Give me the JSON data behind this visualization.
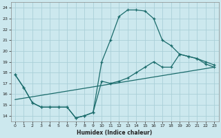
{
  "xlabel": "Humidex (Indice chaleur)",
  "background_color": "#cce8ee",
  "grid_color": "#aacfd8",
  "line_color": "#1a6b6b",
  "ylim": [
    13.5,
    24.5
  ],
  "xlim": [
    -0.5,
    23.5
  ],
  "yticks": [
    14,
    15,
    16,
    17,
    18,
    19,
    20,
    21,
    22,
    23,
    24
  ],
  "xticks": [
    0,
    1,
    2,
    3,
    4,
    5,
    6,
    7,
    8,
    9,
    10,
    11,
    12,
    13,
    14,
    15,
    16,
    17,
    18,
    19,
    20,
    21,
    22,
    23
  ],
  "line1_x": [
    0,
    1,
    2,
    3,
    4,
    5,
    6,
    7,
    8,
    9,
    10,
    11,
    12,
    13,
    14,
    15,
    16,
    17,
    18,
    19,
    20,
    21,
    22,
    23
  ],
  "line1_y": [
    17.8,
    16.6,
    15.2,
    14.8,
    14.8,
    14.8,
    14.8,
    13.8,
    14.0,
    14.3,
    19.0,
    21.0,
    23.2,
    23.8,
    23.8,
    23.7,
    23.0,
    21.0,
    20.5,
    19.7,
    19.5,
    19.3,
    19.0,
    18.7
  ],
  "line2_x": [
    0,
    1,
    2,
    3,
    4,
    5,
    6,
    7,
    8,
    9,
    10,
    11,
    12,
    13,
    14,
    15,
    16,
    17,
    18,
    19,
    20,
    21,
    22,
    23
  ],
  "line2_y": [
    17.8,
    16.6,
    15.2,
    14.8,
    14.8,
    14.8,
    14.8,
    13.8,
    14.0,
    14.3,
    17.2,
    17.0,
    17.2,
    17.5,
    18.0,
    18.5,
    19.0,
    18.5,
    18.5,
    19.7,
    19.5,
    19.3,
    18.8,
    18.5
  ],
  "line3_x": [
    0,
    23
  ],
  "line3_y": [
    15.5,
    18.5
  ]
}
